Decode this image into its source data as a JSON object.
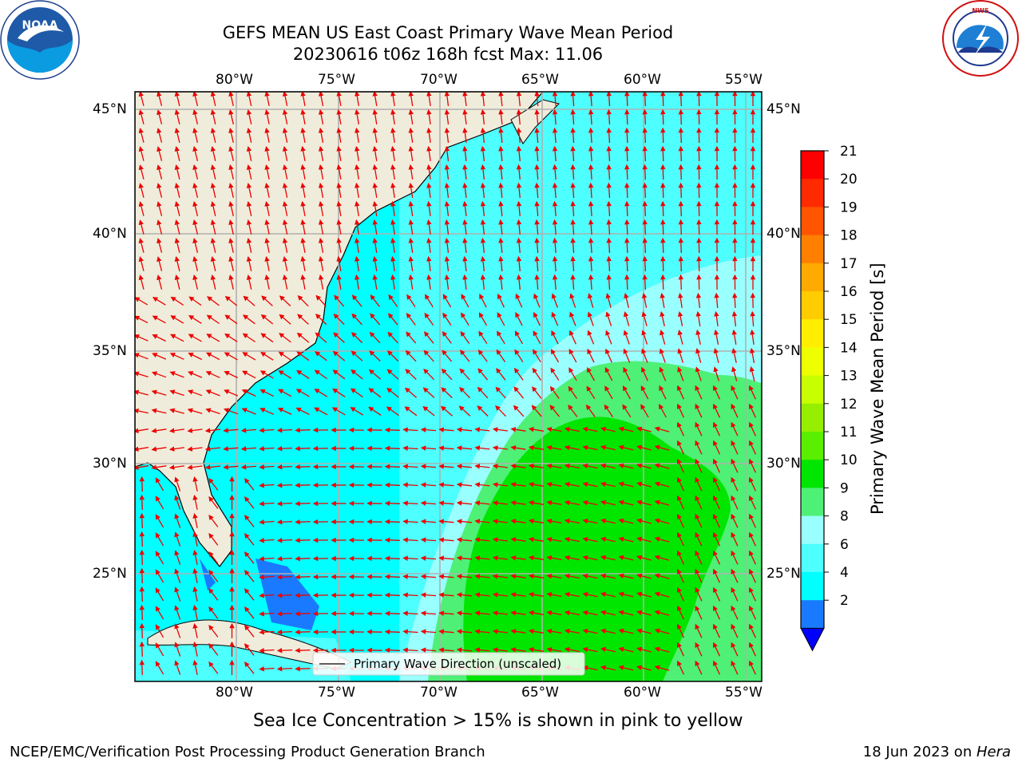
{
  "header": {
    "title_line1": "GEFS MEAN US East Coast Primary Wave Mean Period",
    "title_line2": "20230616 t06z 168h fcst   Max: 11.06"
  },
  "logos": {
    "left": {
      "text": "NOAA",
      "ring_text": "NATIONAL OCEANIC AND ATMOSPHERIC ADMINISTRATION · U.S. DEPARTMENT OF COMMERCE",
      "icon": "noaa-logo"
    },
    "right": {
      "ring_text": "NATIONAL WEATHER SERVICE",
      "icon": "nws-logo"
    }
  },
  "map": {
    "lon_labels": [
      "80°W",
      "75°W",
      "70°W",
      "65°W",
      "60°W",
      "55°W"
    ],
    "lat_labels": [
      "45°N",
      "40°N",
      "35°N",
      "30°N",
      "25°N"
    ],
    "legend_label": "Primary Wave Direction (unscaled)",
    "colors": {
      "land": "#efecdb",
      "ocean_low": "#00ffff",
      "ocean_mid": "#4dffff",
      "ocean_light": "#9affff",
      "swell_green": "#4ef076",
      "swell_bright": "#00e600",
      "dark_blue": "#1a7aff",
      "arrow": "#ee0000",
      "grid": "#b0b0b0"
    }
  },
  "colorbar": {
    "label": "Primary Wave Mean Period [s]",
    "ticks": [
      "21",
      "20",
      "19",
      "18",
      "17",
      "16",
      "15",
      "14",
      "13",
      "12",
      "11",
      "10",
      "9",
      "8",
      "6",
      "4",
      "2"
    ],
    "colors": [
      "#ff0000",
      "#ff2a00",
      "#ff5500",
      "#ff8000",
      "#ffaa00",
      "#ffcc00",
      "#ffee00",
      "#eeff00",
      "#c8ff00",
      "#96ee00",
      "#5aee00",
      "#00e600",
      "#4ef076",
      "#9affff",
      "#4dffff",
      "#00ffff",
      "#1a7aff"
    ],
    "extend_color": "#0000ff"
  },
  "footer": {
    "sea_ice_note": "Sea Ice Concentration > 15% is shown in pink to yellow",
    "branch": "NCEP/EMC/Verification Post Processing Product Generation Branch",
    "date_prefix": "18 Jun 2023 on ",
    "machine": "Hera"
  }
}
